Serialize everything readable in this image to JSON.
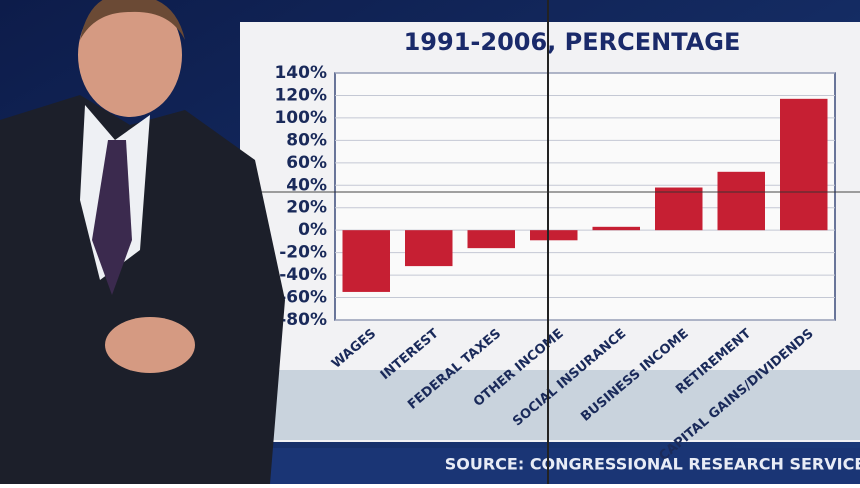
{
  "chart_data": {
    "type": "bar",
    "title": "1991-2006, PERCENTAGE",
    "source": "SOURCE: CONGRESSIONAL RESEARCH SERVICE",
    "categories": [
      "WAGES",
      "INTEREST",
      "FEDERAL TAXES",
      "OTHER INCOME",
      "SOCIAL INSURANCE",
      "BUSINESS INCOME",
      "RETIREMENT",
      "CAPITAL GAINS/DIVIDENDS"
    ],
    "values": [
      -55,
      -32,
      -16,
      -9,
      3,
      38,
      52,
      117
    ],
    "color": "#c61f33",
    "ylim": [
      -80,
      140
    ],
    "yticks": [
      {
        "value": -80,
        "label": "-80%"
      },
      {
        "value": -60,
        "label": "-60%"
      },
      {
        "value": -40,
        "label": "-40%"
      },
      {
        "value": -20,
        "label": "-20%"
      },
      {
        "value": 0,
        "label": "0%"
      },
      {
        "value": 20,
        "label": "20%"
      },
      {
        "value": 40,
        "label": "40%"
      },
      {
        "value": 60,
        "label": "60%"
      },
      {
        "value": 80,
        "label": "80%"
      },
      {
        "value": 100,
        "label": "100%"
      },
      {
        "value": 120,
        "label": "120%"
      },
      {
        "value": 140,
        "label": "140%"
      }
    ],
    "grid": true
  }
}
